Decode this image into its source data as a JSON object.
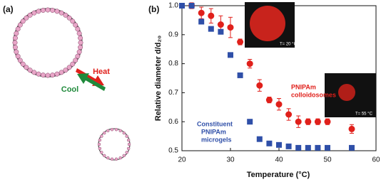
{
  "panel_a": {
    "label": "(a)",
    "heat": "Heat",
    "cool": "Cool"
  },
  "chart_data": {
    "type": "scatter",
    "panel_label": "(b)",
    "xlabel": "Temperature (°C)",
    "ylabel": "Relative diameter d/d₂₀",
    "xlim": [
      20,
      60
    ],
    "xticks": [
      20,
      30,
      40,
      50,
      60
    ],
    "ylim": [
      0.5,
      1.0
    ],
    "yticks": [
      0.5,
      0.6,
      0.7,
      0.8,
      0.9,
      {
        "value": 1.0,
        "label": "1.0"
      }
    ],
    "series": [
      {
        "name": [
          "PNIPAm",
          "colloidosomes"
        ],
        "color": "#e0201b",
        "marker": "circle",
        "x": [
          22,
          24,
          26,
          28,
          30,
          32,
          34,
          36,
          38,
          40,
          42,
          44,
          46,
          48,
          50,
          55
        ],
        "values": [
          1.0,
          0.975,
          0.965,
          0.935,
          0.925,
          0.875,
          0.8,
          0.725,
          0.675,
          0.66,
          0.625,
          0.6,
          0.6,
          0.6,
          0.6,
          0.575
        ],
        "errors": [
          0.01,
          0.02,
          0.025,
          0.03,
          0.035,
          0.01,
          0.015,
          0.02,
          0.01,
          0.02,
          0.02,
          0.02,
          0.01,
          0.01,
          0.01,
          0.015
        ]
      },
      {
        "name": [
          "Constituent",
          "PNIPAm",
          "microgels"
        ],
        "color": "#2f4fa8",
        "marker": "square",
        "x": [
          20,
          22,
          24,
          26,
          28,
          30,
          32,
          34,
          36,
          38,
          40,
          42,
          44,
          46,
          48,
          50,
          55
        ],
        "values": [
          1.0,
          1.0,
          0.945,
          0.92,
          0.91,
          0.83,
          0.76,
          0.6,
          0.54,
          0.525,
          0.52,
          0.515,
          0.51,
          0.51,
          0.51,
          0.51,
          0.51
        ]
      }
    ],
    "insets": [
      "T= 20 °C",
      "T= 55 °C"
    ]
  }
}
